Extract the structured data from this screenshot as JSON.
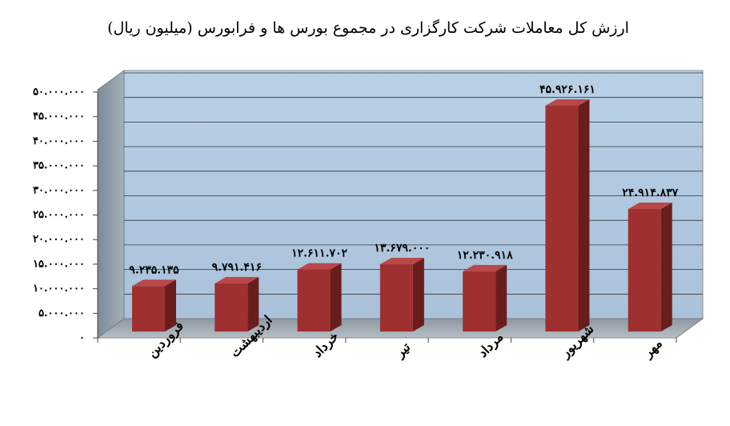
{
  "chart_data": {
    "type": "bar3d",
    "title": "ارزش کل معاملات شرکت کارگزاری در مجموع بورس ها و فرابورس (میلیون ریال)",
    "categories": [
      "فروردین",
      "اردیبهشت",
      "خرداد",
      "تیر",
      "مرداد",
      "شهریور",
      "مهر"
    ],
    "values": [
      9235135,
      9791416,
      12611702,
      13679000,
      12230918,
      45926161,
      24914837
    ],
    "value_labels": [
      "۹.۲۳۵.۱۳۵",
      "۹.۷۹۱.۴۱۶",
      "۱۲.۶۱۱.۷۰۲",
      "۱۳.۶۷۹.۰۰۰",
      "۱۲.۲۳۰.۹۱۸",
      "۴۵.۹۲۶.۱۶۱",
      "۲۴.۹۱۴.۸۳۷"
    ],
    "color": "#9e3030",
    "ylim": [
      0,
      50000000
    ],
    "yticks": [
      {
        "value": 0,
        "label": "۰"
      },
      {
        "value": 5000000,
        "label": "۵.۰۰۰.۰۰۰"
      },
      {
        "value": 10000000,
        "label": "۱۰.۰۰۰.۰۰۰"
      },
      {
        "value": 15000000,
        "label": "۱۵.۰۰۰.۰۰۰"
      },
      {
        "value": 20000000,
        "label": "۲۰.۰۰۰.۰۰۰"
      },
      {
        "value": 25000000,
        "label": "۲۵.۰۰۰.۰۰۰"
      },
      {
        "value": 30000000,
        "label": "۳۰.۰۰۰.۰۰۰"
      },
      {
        "value": 35000000,
        "label": "۳۵.۰۰۰.۰۰۰"
      },
      {
        "value": 40000000,
        "label": "۴۰.۰۰۰.۰۰۰"
      },
      {
        "value": 45000000,
        "label": "۴۵.۰۰۰.۰۰۰"
      },
      {
        "value": 50000000,
        "label": "۵۰.۰۰۰.۰۰۰"
      }
    ],
    "grid": true
  }
}
